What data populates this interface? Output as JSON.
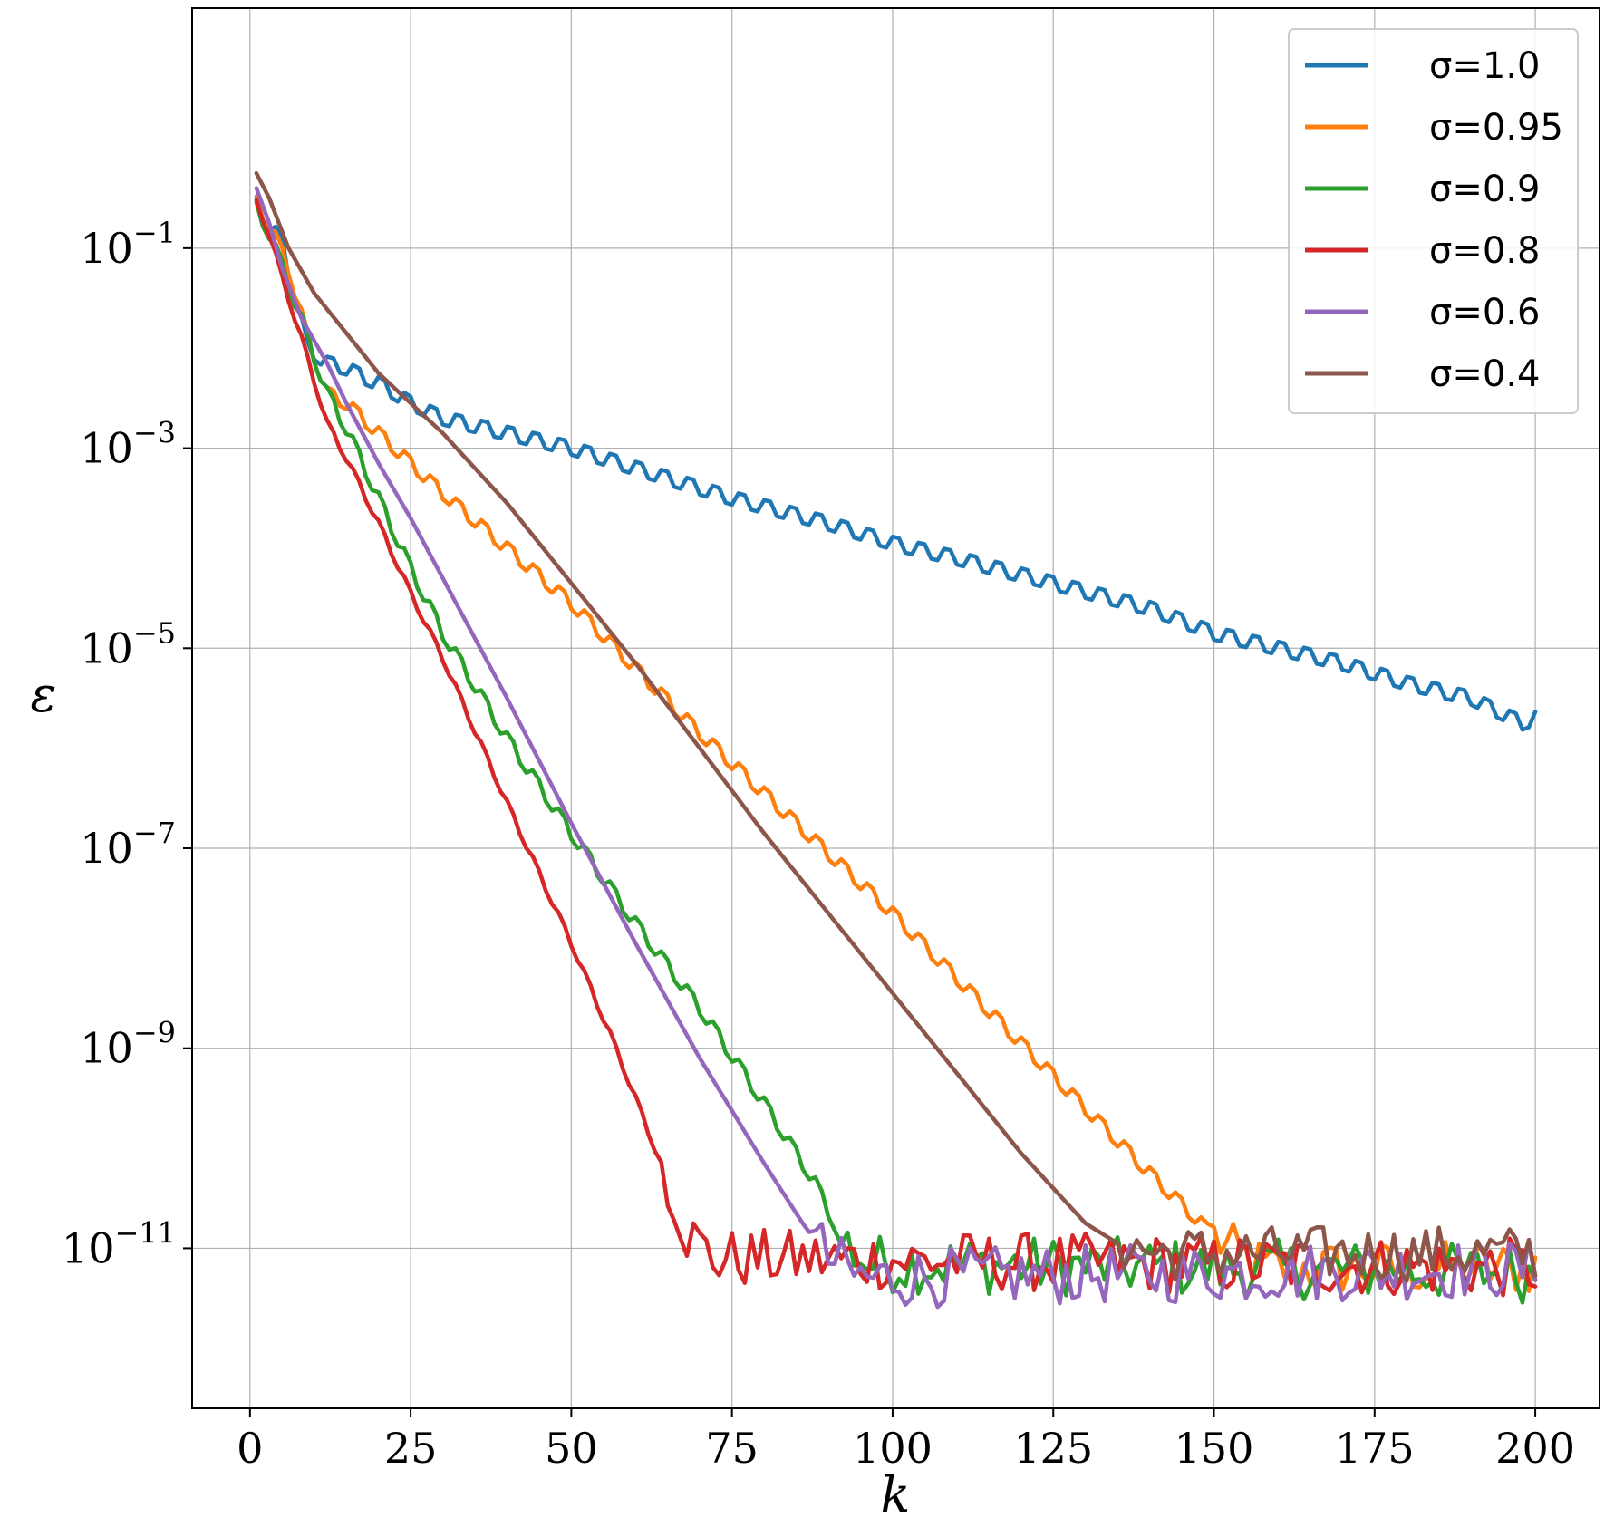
{
  "chart_data": {
    "type": "line",
    "xlabel": "k",
    "ylabel": "ε",
    "xlim": [
      -9,
      210
    ],
    "ylim_exp": [
      -12.6,
      1.4
    ],
    "yscale": "log",
    "xticks": [
      0,
      25,
      50,
      75,
      100,
      125,
      150,
      175,
      200
    ],
    "yticks": [
      {
        "base": "10",
        "exp": "−1",
        "value": 0.1
      },
      {
        "base": "10",
        "exp": "−3",
        "value": 0.001
      },
      {
        "base": "10",
        "exp": "−5",
        "value": 1e-05
      },
      {
        "base": "10",
        "exp": "−7",
        "value": 1e-07
      },
      {
        "base": "10",
        "exp": "−9",
        "value": 1e-09
      },
      {
        "base": "10",
        "exp": "−11",
        "value": 1e-11
      }
    ],
    "grid": true,
    "legend_position": "top-right",
    "series": [
      {
        "name": "σ=1.0",
        "sigma": "1.0",
        "color": "#1f77b4",
        "points": [
          [
            1,
            -0.55
          ],
          [
            3,
            -0.75
          ],
          [
            5,
            -0.95
          ],
          [
            7,
            -1.5
          ],
          [
            9,
            -2.0
          ],
          [
            12,
            -2.15
          ],
          [
            15,
            -2.2
          ],
          [
            18,
            -2.3
          ],
          [
            20,
            -2.35
          ],
          [
            25,
            -2.55
          ],
          [
            30,
            -2.7
          ],
          [
            40,
            -2.85
          ],
          [
            50,
            -3.0
          ],
          [
            60,
            -3.2
          ],
          [
            75,
            -3.5
          ],
          [
            90,
            -3.75
          ],
          [
            100,
            -3.95
          ],
          [
            110,
            -4.1
          ],
          [
            125,
            -4.35
          ],
          [
            140,
            -4.6
          ],
          [
            150,
            -4.85
          ],
          [
            160,
            -5.0
          ],
          [
            170,
            -5.15
          ],
          [
            180,
            -5.35
          ],
          [
            190,
            -5.5
          ],
          [
            198,
            -5.75
          ],
          [
            200,
            -5.7
          ]
        ],
        "osc": 0.13,
        "period": 4
      },
      {
        "name": "σ=0.95",
        "sigma": "0.95",
        "color": "#ff7f0e",
        "points": [
          [
            1,
            -0.55
          ],
          [
            3,
            -0.75
          ],
          [
            6,
            -1.2
          ],
          [
            9,
            -1.9
          ],
          [
            12,
            -2.45
          ],
          [
            15,
            -2.55
          ],
          [
            20,
            -2.85
          ],
          [
            25,
            -3.15
          ],
          [
            30,
            -3.45
          ],
          [
            40,
            -4.0
          ],
          [
            50,
            -4.55
          ],
          [
            60,
            -5.2
          ],
          [
            70,
            -5.85
          ],
          [
            80,
            -6.45
          ],
          [
            90,
            -7.05
          ],
          [
            100,
            -7.65
          ],
          [
            110,
            -8.3
          ],
          [
            120,
            -8.95
          ],
          [
            130,
            -9.6
          ],
          [
            140,
            -10.25
          ],
          [
            148,
            -10.75
          ],
          [
            152,
            -11.0
          ],
          [
            158,
            -11.2
          ],
          [
            200,
            -11.2
          ]
        ],
        "osc": 0.12,
        "period": 4,
        "noise_start": 150,
        "noise_amp": 0.28
      },
      {
        "name": "σ=0.9",
        "sigma": "0.9",
        "color": "#2ca02c",
        "points": [
          [
            1,
            -0.6
          ],
          [
            3,
            -0.85
          ],
          [
            6,
            -1.35
          ],
          [
            9,
            -1.9
          ],
          [
            12,
            -2.45
          ],
          [
            15,
            -2.8
          ],
          [
            20,
            -3.5
          ],
          [
            25,
            -4.2
          ],
          [
            30,
            -4.85
          ],
          [
            40,
            -5.9
          ],
          [
            50,
            -6.85
          ],
          [
            60,
            -7.75
          ],
          [
            70,
            -8.6
          ],
          [
            80,
            -9.55
          ],
          [
            88,
            -10.35
          ],
          [
            92,
            -10.9
          ],
          [
            96,
            -11.15
          ],
          [
            200,
            -11.25
          ]
        ],
        "osc": 0.12,
        "period": 4,
        "noise_start": 92,
        "noise_amp": 0.3
      },
      {
        "name": "σ=0.8",
        "sigma": "0.8",
        "color": "#d62728",
        "points": [
          [
            1,
            -0.55
          ],
          [
            3,
            -0.85
          ],
          [
            5,
            -1.3
          ],
          [
            8,
            -1.9
          ],
          [
            12,
            -2.75
          ],
          [
            15,
            -3.1
          ],
          [
            20,
            -3.75
          ],
          [
            25,
            -4.45
          ],
          [
            30,
            -5.1
          ],
          [
            40,
            -6.55
          ],
          [
            50,
            -7.95
          ],
          [
            56,
            -8.85
          ],
          [
            60,
            -9.5
          ],
          [
            63,
            -10.0
          ],
          [
            66,
            -10.5
          ],
          [
            68,
            -10.85
          ],
          [
            72,
            -11.1
          ],
          [
            200,
            -11.2
          ]
        ],
        "osc": 0.06,
        "period": 4,
        "noise_start": 65,
        "noise_amp": 0.3
      },
      {
        "name": "σ=0.6",
        "sigma": "0.6",
        "color": "#9467bd",
        "points": [
          [
            1,
            -0.4
          ],
          [
            3,
            -0.75
          ],
          [
            5,
            -1.2
          ],
          [
            8,
            -1.7
          ],
          [
            12,
            -2.15
          ],
          [
            15,
            -2.55
          ],
          [
            20,
            -3.15
          ],
          [
            25,
            -3.7
          ],
          [
            30,
            -4.3
          ],
          [
            40,
            -5.5
          ],
          [
            50,
            -6.75
          ],
          [
            60,
            -7.95
          ],
          [
            70,
            -9.1
          ],
          [
            80,
            -10.15
          ],
          [
            86,
            -10.75
          ],
          [
            90,
            -11.1
          ],
          [
            95,
            -11.3
          ],
          [
            200,
            -11.2
          ]
        ],
        "osc": 0.0,
        "period": 4,
        "noise_start": 88,
        "noise_amp": 0.3
      },
      {
        "name": "σ=0.4",
        "sigma": "0.4",
        "color": "#8c564b",
        "points": [
          [
            1,
            -0.25
          ],
          [
            3,
            -0.5
          ],
          [
            6,
            -1.0
          ],
          [
            10,
            -1.45
          ],
          [
            15,
            -1.85
          ],
          [
            20,
            -2.25
          ],
          [
            25,
            -2.55
          ],
          [
            30,
            -2.85
          ],
          [
            40,
            -3.55
          ],
          [
            50,
            -4.35
          ],
          [
            60,
            -5.15
          ],
          [
            70,
            -6.0
          ],
          [
            80,
            -6.85
          ],
          [
            90,
            -7.65
          ],
          [
            100,
            -8.45
          ],
          [
            110,
            -9.25
          ],
          [
            120,
            -10.05
          ],
          [
            125,
            -10.4
          ],
          [
            130,
            -10.75
          ],
          [
            135,
            -10.95
          ],
          [
            138,
            -11.0
          ],
          [
            142,
            -11.05
          ],
          [
            200,
            -11.05
          ]
        ],
        "osc": 0.0,
        "period": 4,
        "noise_start": 136,
        "noise_amp": 0.28
      }
    ]
  }
}
